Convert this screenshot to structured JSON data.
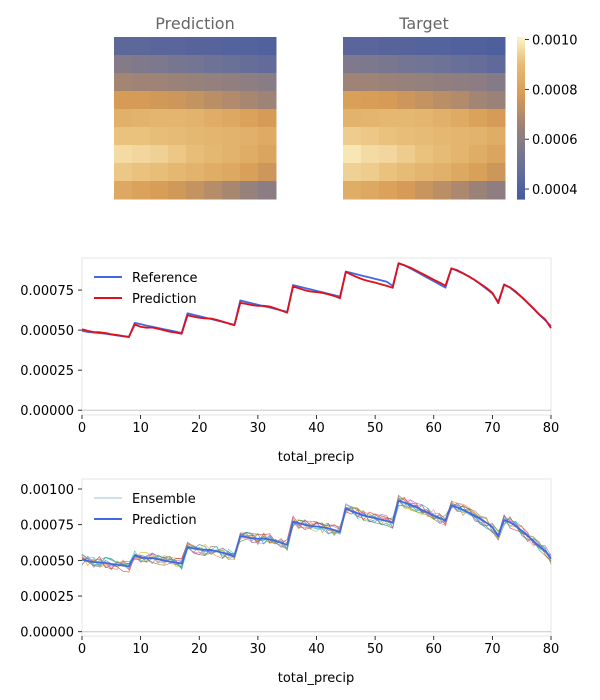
{
  "colors": {
    "reference": "#4169e1",
    "prediction_red": "#e0101a",
    "prediction_blue": "#4169e1",
    "frame": "#e6e6e6",
    "zero_line": "#c8c8c8",
    "title": "#666666",
    "ensemble": [
      "#1f77b4",
      "#ff7f0e",
      "#2ca02c",
      "#d62728",
      "#9467bd",
      "#8c564b",
      "#e377c2",
      "#7f7f7f",
      "#bcbd22",
      "#17becf"
    ]
  },
  "chart_data": [
    {
      "type": "heatmap",
      "title": "Prediction",
      "rows": 9,
      "cols": 9,
      "colorscale": "sunset (blue-grey to orange to cream)",
      "vrange": [
        0.00036,
        0.00101
      ],
      "values": [
        [
          0.00044,
          0.00044,
          0.00043,
          0.00043,
          0.00042,
          0.00042,
          0.00041,
          0.00041,
          0.0004
        ],
        [
          0.00058,
          0.00056,
          0.00055,
          0.00053,
          0.00052,
          0.0005,
          0.00049,
          0.00047,
          0.00046
        ],
        [
          0.00067,
          0.00066,
          0.00066,
          0.00065,
          0.00064,
          0.00063,
          0.00062,
          0.00061,
          0.00059
        ],
        [
          0.00078,
          0.00078,
          0.00077,
          0.00076,
          0.00074,
          0.00072,
          0.0007,
          0.00068,
          0.00066
        ],
        [
          0.00086,
          0.00087,
          0.00088,
          0.00088,
          0.00087,
          0.00085,
          0.00083,
          0.00081,
          0.00078
        ],
        [
          0.00092,
          0.00092,
          0.00091,
          0.0009,
          0.00089,
          0.00088,
          0.00087,
          0.00086,
          0.00084
        ],
        [
          0.00097,
          0.00096,
          0.00095,
          0.00093,
          0.00091,
          0.00089,
          0.00087,
          0.00085,
          0.00082
        ],
        [
          0.00093,
          0.00092,
          0.00091,
          0.00089,
          0.00087,
          0.00085,
          0.00083,
          0.0008,
          0.00076
        ],
        [
          0.00083,
          0.00081,
          0.00079,
          0.00077,
          0.00074,
          0.00071,
          0.00068,
          0.00064,
          0.0006
        ]
      ]
    },
    {
      "type": "heatmap",
      "title": "Target",
      "rows": 9,
      "cols": 9,
      "colorscale": "sunset (blue-grey to orange to cream)",
      "vrange": [
        0.00036,
        0.00101
      ],
      "values": [
        [
          0.00043,
          0.00043,
          0.00042,
          0.00042,
          0.00041,
          0.00041,
          0.0004,
          0.0004,
          0.00039
        ],
        [
          0.00056,
          0.00055,
          0.00054,
          0.00052,
          0.00051,
          0.0005,
          0.00048,
          0.00047,
          0.00045
        ],
        [
          0.00066,
          0.00066,
          0.00065,
          0.00064,
          0.00063,
          0.00062,
          0.00061,
          0.0006,
          0.00058
        ],
        [
          0.0008,
          0.00079,
          0.00078,
          0.00076,
          0.00074,
          0.00072,
          0.0007,
          0.00067,
          0.00065
        ],
        [
          0.00087,
          0.00088,
          0.00089,
          0.00089,
          0.00088,
          0.00086,
          0.00084,
          0.00081,
          0.00078
        ],
        [
          0.00094,
          0.00093,
          0.00092,
          0.00091,
          0.0009,
          0.00089,
          0.00088,
          0.00087,
          0.00085
        ],
        [
          0.00099,
          0.00097,
          0.00096,
          0.00094,
          0.00092,
          0.0009,
          0.00088,
          0.00085,
          0.00082
        ],
        [
          0.00095,
          0.00094,
          0.00092,
          0.0009,
          0.00088,
          0.00086,
          0.00083,
          0.0008,
          0.00076
        ],
        [
          0.00085,
          0.00083,
          0.00081,
          0.00078,
          0.00075,
          0.00072,
          0.00069,
          0.00065,
          0.00061
        ]
      ]
    },
    {
      "type": "colorbar",
      "ticks": [
        0.0004,
        0.0006,
        0.0008,
        0.001
      ],
      "tick_labels": [
        "0.0004",
        "0.0006",
        "0.0008",
        "0.0010"
      ],
      "range": [
        0.00036,
        0.00101
      ]
    },
    {
      "type": "line",
      "xlabel": "total_precip",
      "ylabel": "",
      "xlim": [
        0,
        80
      ],
      "ylim": [
        -3e-05,
        0.00095
      ],
      "xticks": [
        0,
        10,
        20,
        30,
        40,
        50,
        60,
        70,
        80
      ],
      "yticks": [
        0,
        0.00025,
        0.0005,
        0.00075
      ],
      "ytick_labels": [
        "0.00000",
        "0.00025",
        "0.00050",
        "0.00075"
      ],
      "legend_position": "top-left",
      "grid": false,
      "series": [
        {
          "name": "Reference",
          "x": [
            0,
            1,
            2,
            3,
            4,
            5,
            6,
            7,
            8,
            9,
            10,
            11,
            12,
            13,
            14,
            15,
            16,
            17,
            18,
            19,
            20,
            21,
            22,
            23,
            24,
            25,
            26,
            27,
            28,
            29,
            30,
            31,
            32,
            33,
            34,
            35,
            36,
            37,
            38,
            39,
            40,
            41,
            42,
            43,
            44,
            45,
            46,
            47,
            48,
            49,
            50,
            51,
            52,
            53,
            54,
            55,
            56,
            57,
            58,
            59,
            60,
            61,
            62,
            63,
            64,
            65,
            66,
            67,
            68,
            69,
            70,
            71,
            72,
            73,
            74,
            75,
            76,
            77,
            78,
            79,
            80
          ],
          "values": [
            0.000495,
            0.000488,
            0.000484,
            0.000481,
            0.000477,
            0.000472,
            0.000466,
            0.000461,
            0.000456,
            0.000545,
            0.000537,
            0.000528,
            0.000521,
            0.000513,
            0.000505,
            0.000498,
            0.00049,
            0.000482,
            0.000605,
            0.000596,
            0.000587,
            0.000578,
            0.000569,
            0.00056,
            0.000551,
            0.000542,
            0.000533,
            0.000685,
            0.000676,
            0.000667,
            0.000658,
            0.000649,
            0.000641,
            0.000632,
            0.000623,
            0.000614,
            0.000781,
            0.000772,
            0.000763,
            0.000754,
            0.000745,
            0.000736,
            0.000727,
            0.000718,
            0.000709,
            0.000865,
            0.000856,
            0.000847,
            0.000838,
            0.000829,
            0.00082,
            0.000811,
            0.000802,
            0.000775,
            0.000915,
            0.000905,
            0.000885,
            0.000865,
            0.000845,
            0.000825,
            0.000805,
            0.000785,
            0.000765,
            0.000885,
            0.000875,
            0.000855,
            0.000835,
            0.000812,
            0.000785,
            0.000757,
            0.000728,
            0.000676,
            0.000786,
            0.000765,
            0.000735,
            0.000705,
            0.00067,
            0.000633,
            0.000596,
            0.000562,
            0.000525
          ]
        },
        {
          "name": "Prediction",
          "x": [
            0,
            1,
            2,
            3,
            4,
            5,
            6,
            7,
            8,
            9,
            10,
            11,
            12,
            13,
            14,
            15,
            16,
            17,
            18,
            19,
            20,
            21,
            22,
            23,
            24,
            25,
            26,
            27,
            28,
            29,
            30,
            31,
            32,
            33,
            34,
            35,
            36,
            37,
            38,
            39,
            40,
            41,
            42,
            43,
            44,
            45,
            46,
            47,
            48,
            49,
            50,
            51,
            52,
            53,
            54,
            55,
            56,
            57,
            58,
            59,
            60,
            61,
            62,
            63,
            64,
            65,
            66,
            67,
            68,
            69,
            70,
            71,
            72,
            73,
            74,
            75,
            76,
            77,
            78,
            79,
            80
          ],
          "values": [
            0.000505,
            0.000495,
            0.000488,
            0.000486,
            0.000482,
            0.000474,
            0.000469,
            0.000463,
            0.000458,
            0.000535,
            0.000521,
            0.000515,
            0.000516,
            0.000508,
            0.000499,
            0.00049,
            0.000484,
            0.000477,
            0.000593,
            0.000584,
            0.000577,
            0.000573,
            0.000572,
            0.000564,
            0.000553,
            0.000541,
            0.00053,
            0.00067,
            0.000664,
            0.000656,
            0.000651,
            0.000652,
            0.000647,
            0.000636,
            0.000622,
            0.000609,
            0.000772,
            0.000761,
            0.000749,
            0.000741,
            0.000737,
            0.000732,
            0.000724,
            0.000713,
            0.000699,
            0.000864,
            0.000845,
            0.000829,
            0.000815,
            0.000805,
            0.000796,
            0.000786,
            0.000776,
            0.000764,
            0.000918,
            0.000904,
            0.00089,
            0.000872,
            0.000853,
            0.000834,
            0.000815,
            0.000797,
            0.000777,
            0.000885,
            0.000871,
            0.000854,
            0.000834,
            0.000813,
            0.000788,
            0.000763,
            0.000733,
            0.000668,
            0.000782,
            0.000767,
            0.00074,
            0.000707,
            0.000672,
            0.000636,
            0.000598,
            0.000567,
            0.000512
          ]
        }
      ]
    },
    {
      "type": "line",
      "xlabel": "total_precip",
      "ylabel": "",
      "xlim": [
        0,
        80
      ],
      "ylim": [
        -3e-05,
        0.00107
      ],
      "xticks": [
        0,
        10,
        20,
        30,
        40,
        50,
        60,
        70,
        80
      ],
      "yticks": [
        0,
        0.00025,
        0.0005,
        0.00075,
        0.001
      ],
      "ytick_labels": [
        "0.00000",
        "0.00025",
        "0.00050",
        "0.00075",
        "0.00100"
      ],
      "legend_position": "top-left",
      "grid": false,
      "ensemble_members": 10,
      "ensemble_spread": 4e-05,
      "series": [
        {
          "name": "Ensemble",
          "note": "10 member traces scattered around the Prediction series"
        },
        {
          "name": "Prediction",
          "x": [
            0,
            1,
            2,
            3,
            4,
            5,
            6,
            7,
            8,
            9,
            10,
            11,
            12,
            13,
            14,
            15,
            16,
            17,
            18,
            19,
            20,
            21,
            22,
            23,
            24,
            25,
            26,
            27,
            28,
            29,
            30,
            31,
            32,
            33,
            34,
            35,
            36,
            37,
            38,
            39,
            40,
            41,
            42,
            43,
            44,
            45,
            46,
            47,
            48,
            49,
            50,
            51,
            52,
            53,
            54,
            55,
            56,
            57,
            58,
            59,
            60,
            61,
            62,
            63,
            64,
            65,
            66,
            67,
            68,
            69,
            70,
            71,
            72,
            73,
            74,
            75,
            76,
            77,
            78,
            79,
            80
          ],
          "values": [
            0.000505,
            0.000495,
            0.000488,
            0.000486,
            0.000482,
            0.000474,
            0.000469,
            0.000463,
            0.000458,
            0.000535,
            0.000521,
            0.000515,
            0.000516,
            0.000508,
            0.000499,
            0.00049,
            0.000484,
            0.000477,
            0.000593,
            0.000584,
            0.000577,
            0.000573,
            0.000572,
            0.000564,
            0.000553,
            0.000541,
            0.00053,
            0.00067,
            0.000664,
            0.000656,
            0.000651,
            0.000652,
            0.000647,
            0.000636,
            0.000622,
            0.000609,
            0.000772,
            0.000761,
            0.000749,
            0.000741,
            0.000737,
            0.000732,
            0.000724,
            0.000713,
            0.000699,
            0.000864,
            0.000845,
            0.000829,
            0.000815,
            0.000805,
            0.000796,
            0.000786,
            0.000776,
            0.000764,
            0.000918,
            0.000904,
            0.00089,
            0.000872,
            0.000853,
            0.000834,
            0.000815,
            0.000797,
            0.000777,
            0.000885,
            0.000871,
            0.000854,
            0.000834,
            0.000813,
            0.000788,
            0.000763,
            0.000733,
            0.000668,
            0.000782,
            0.000767,
            0.00074,
            0.000707,
            0.000672,
            0.000636,
            0.000598,
            0.000567,
            0.000512
          ]
        }
      ]
    }
  ]
}
